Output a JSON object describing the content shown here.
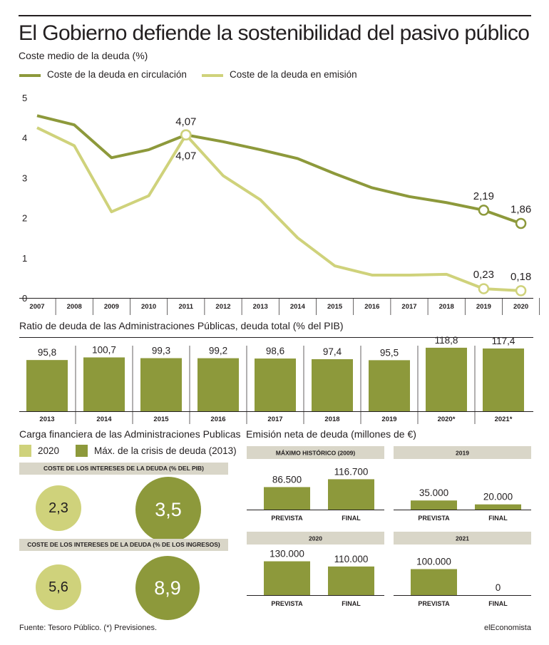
{
  "title": "El Gobierno defiende la sostenibilidad del pasivo público",
  "subtitle": "Coste medio de la deuda (%)",
  "colors": {
    "dark_green": "#8d993b",
    "light_green": "#cfd27b",
    "band_gray": "#d9d6c8",
    "text": "#231f20"
  },
  "chart_data": [
    {
      "type": "line",
      "x": [
        "2007",
        "2008",
        "2009",
        "2010",
        "2011",
        "2012",
        "2013",
        "2014",
        "2015",
        "2016",
        "2017",
        "2018",
        "2019",
        "2020"
      ],
      "ylim": [
        0,
        5
      ],
      "yticks": [
        "0",
        "1",
        "2",
        "3",
        "4",
        "5"
      ],
      "grid": false,
      "legend_position": "top-left",
      "series": [
        {
          "name": "Coste de la deuda en circulación",
          "color": "#8d993b",
          "values": [
            4.55,
            4.32,
            3.5,
            3.7,
            4.07,
            3.9,
            3.7,
            3.48,
            3.1,
            2.75,
            2.53,
            2.38,
            2.19,
            1.86
          ]
        },
        {
          "name": "Coste de la deuda en emisión",
          "color": "#cfd27b",
          "values": [
            4.25,
            3.8,
            2.15,
            2.55,
            4.07,
            3.05,
            2.45,
            1.5,
            0.8,
            0.57,
            0.57,
            0.59,
            0.23,
            0.18
          ]
        }
      ],
      "annotations": [
        {
          "series": 0,
          "index": 4,
          "label": "4,07"
        },
        {
          "series": 1,
          "index": 4,
          "label": "4,07"
        },
        {
          "series": 0,
          "index": 12,
          "label": "2,19"
        },
        {
          "series": 0,
          "index": 13,
          "label": "1,86"
        },
        {
          "series": 1,
          "index": 12,
          "label": "0,23"
        },
        {
          "series": 1,
          "index": 13,
          "label": "0,18"
        }
      ]
    },
    {
      "type": "bar",
      "title": "Ratio de deuda de las Administraciones Públicas, deuda total (% del PIB)",
      "categories": [
        "2013",
        "2014",
        "2015",
        "2016",
        "2017",
        "2018",
        "2019",
        "2020*",
        "2021*"
      ],
      "values": [
        95.8,
        100.7,
        99.3,
        99.2,
        98.6,
        97.4,
        95.5,
        118.8,
        117.4
      ],
      "value_labels": [
        "95,8",
        "100,7",
        "99,3",
        "99,2",
        "98,6",
        "97,4",
        "95,5",
        "118,8",
        "117,4"
      ]
    },
    {
      "type": "bar",
      "title": "Emisión neta de deuda (millones de €)",
      "panels": [
        {
          "title": "MÁXIMO HISTÓRICO (2009)",
          "categories": [
            "PREVISTA",
            "FINAL"
          ],
          "values": [
            86500,
            116700
          ],
          "value_labels": [
            "86.500",
            "116.700"
          ]
        },
        {
          "title": "2019",
          "categories": [
            "PREVISTA",
            "FINAL"
          ],
          "values": [
            35000,
            20000
          ],
          "value_labels": [
            "35.000",
            "20.000"
          ]
        },
        {
          "title": "2020",
          "categories": [
            "PREVISTA",
            "FINAL"
          ],
          "values": [
            130000,
            110000
          ],
          "value_labels": [
            "130.000",
            "110.000"
          ]
        },
        {
          "title": "2021",
          "categories": [
            "PREVISTA",
            "FINAL"
          ],
          "values": [
            100000,
            0
          ],
          "value_labels": [
            "100.000",
            "0"
          ]
        }
      ]
    }
  ],
  "carga": {
    "title": "Carga financiera de las Administraciones Publicas",
    "legend": [
      {
        "label": "2020",
        "color": "#cfd27b"
      },
      {
        "label": "Máx. de la crisis de deuda (2013)",
        "color": "#8d993b"
      }
    ],
    "rows": [
      {
        "title": "COSTE DE LOS INTERESES DE LA DEUDA (% DEL PIB)",
        "v2020": "2,3",
        "vmax": "3,5"
      },
      {
        "title": "COSTE DE LOS INTERESES DE LA DEUDA (% DE LOS INGRESOS)",
        "v2020": "5,6",
        "vmax": "8,9"
      }
    ]
  },
  "footer": {
    "source": "Fuente: Tesoro Público. (*) Previsiones.",
    "brand": "elEconomista"
  }
}
